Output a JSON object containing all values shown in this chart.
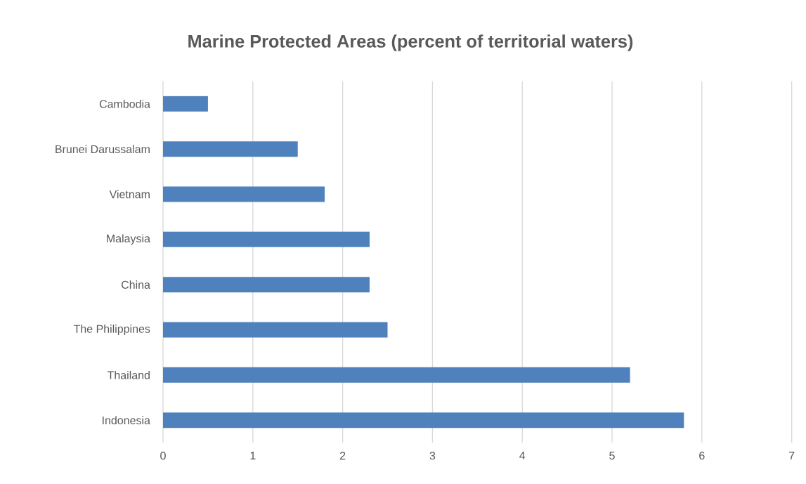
{
  "chart_data": {
    "type": "bar",
    "orientation": "horizontal",
    "title": "Marine Protected Areas (percent of territorial waters)",
    "categories": [
      "Cambodia",
      "Brunei Darussalam",
      "Vietnam",
      "Malaysia",
      "China",
      "The Philippines",
      "Thailand",
      "Indonesia"
    ],
    "values": [
      0.5,
      1.5,
      1.8,
      2.3,
      2.3,
      2.5,
      5.2,
      5.8
    ],
    "color": "#4f81bd",
    "xlim": [
      0,
      7
    ],
    "xticks": [
      0,
      1,
      2,
      3,
      4,
      5,
      6,
      7
    ],
    "grid": "x"
  }
}
